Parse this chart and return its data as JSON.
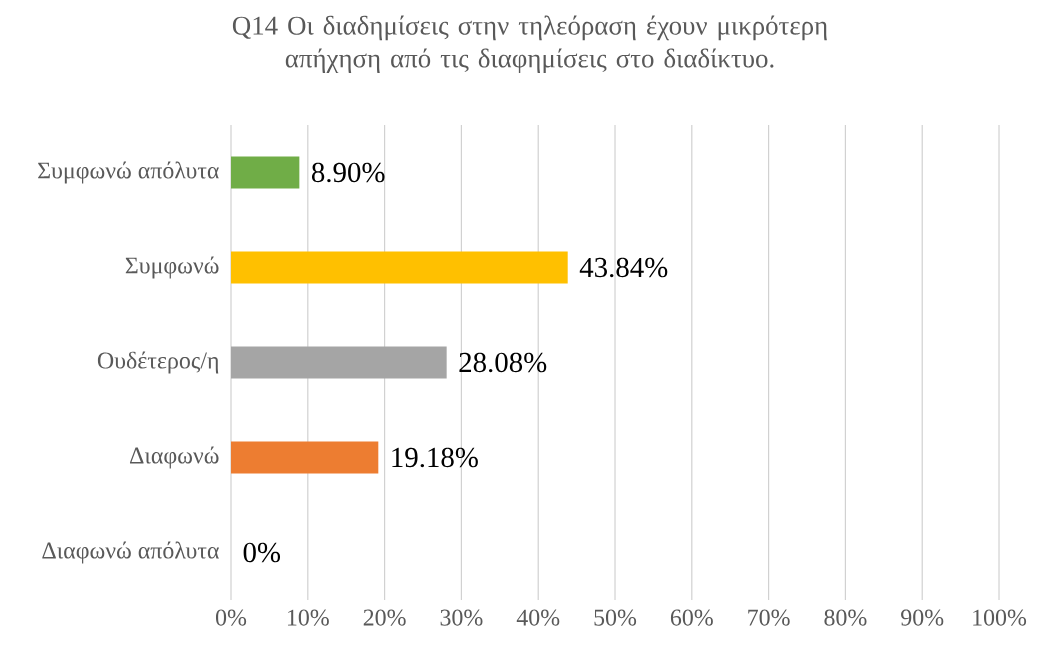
{
  "chart_data": {
    "type": "bar",
    "orientation": "horizontal",
    "title": "Q14 Οι διαδημίσεις στην τηλεόραση έχουν μικρότερη απήχηση από τις διαφημίσεις στο διαδίκτυο.",
    "categories": [
      "Συμφωνώ απόλυτα",
      "Συμφωνώ",
      "Ουδέτερος/η",
      "Διαφωνώ",
      "Διαφωνώ απόλυτα"
    ],
    "values": [
      8.9,
      43.84,
      28.08,
      19.18,
      0
    ],
    "colors": [
      "#70ad47",
      "#ffc000",
      "#a5a5a5",
      "#ed7d31",
      "#5b9bd5"
    ],
    "value_labels": [
      "8.90%",
      "43.84%",
      "28.08%",
      "19.18%",
      "0%"
    ],
    "xlim": [
      0,
      100
    ],
    "xticks": [
      {
        "value": 0,
        "label": "0%"
      },
      {
        "value": 10,
        "label": "10%"
      },
      {
        "value": 20,
        "label": "20%"
      },
      {
        "value": 30,
        "label": "30%"
      },
      {
        "value": 40,
        "label": "40%"
      },
      {
        "value": 50,
        "label": "50%"
      },
      {
        "value": 60,
        "label": "60%"
      },
      {
        "value": 70,
        "label": "70%"
      },
      {
        "value": 80,
        "label": "80%"
      },
      {
        "value": 90,
        "label": "90%"
      },
      {
        "value": 100,
        "label": "100%"
      }
    ],
    "grid": "x"
  }
}
